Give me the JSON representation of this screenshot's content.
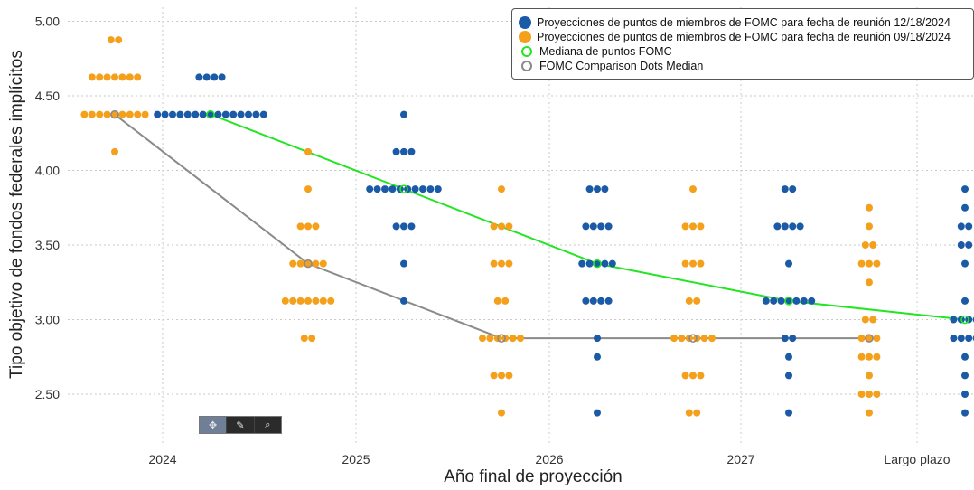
{
  "chart_data": {
    "type": "scatter",
    "xlabel": "Año final de proyección",
    "ylabel": "Tipo objetivo de fondos federales implícitos",
    "categories": [
      "2024",
      "2025",
      "2026",
      "2027",
      "Largo plazo"
    ],
    "ylim": [
      2.25,
      5.0
    ],
    "yticks": [
      "2.50",
      "3.00",
      "3.50",
      "4.00",
      "4.50",
      "5.00"
    ],
    "grid": true,
    "legend_position": "top-right",
    "series": [
      {
        "name": "Proyecciones de puntos de miembros de FOMC para fecha de reunión 12/18/2024",
        "color": "#1a5aa6",
        "kind": "dots",
        "points": [
          {
            "x": "2024",
            "y": 4.625,
            "count": 4
          },
          {
            "x": "2024",
            "y": 4.375,
            "count": 15
          },
          {
            "x": "2025",
            "y": 4.375,
            "count": 1
          },
          {
            "x": "2025",
            "y": 4.125,
            "count": 3
          },
          {
            "x": "2025",
            "y": 3.875,
            "count": 10
          },
          {
            "x": "2025",
            "y": 3.625,
            "count": 3
          },
          {
            "x": "2025",
            "y": 3.375,
            "count": 1
          },
          {
            "x": "2025",
            "y": 3.125,
            "count": 1
          },
          {
            "x": "2026",
            "y": 3.875,
            "count": 3
          },
          {
            "x": "2026",
            "y": 3.625,
            "count": 4
          },
          {
            "x": "2026",
            "y": 3.375,
            "count": 5
          },
          {
            "x": "2026",
            "y": 3.125,
            "count": 4
          },
          {
            "x": "2026",
            "y": 2.875,
            "count": 1
          },
          {
            "x": "2026",
            "y": 2.75,
            "count": 1
          },
          {
            "x": "2026",
            "y": 2.375,
            "count": 1
          },
          {
            "x": "2027",
            "y": 3.875,
            "count": 2
          },
          {
            "x": "2027",
            "y": 3.625,
            "count": 4
          },
          {
            "x": "2027",
            "y": 3.375,
            "count": 1
          },
          {
            "x": "2027",
            "y": 3.125,
            "count": 7
          },
          {
            "x": "2027",
            "y": 2.875,
            "count": 2
          },
          {
            "x": "2027",
            "y": 2.75,
            "count": 1
          },
          {
            "x": "2027",
            "y": 2.625,
            "count": 1
          },
          {
            "x": "2027",
            "y": 2.375,
            "count": 1
          },
          {
            "x": "Largo plazo",
            "y": 3.875,
            "count": 1
          },
          {
            "x": "Largo plazo",
            "y": 3.75,
            "count": 1
          },
          {
            "x": "Largo plazo",
            "y": 3.625,
            "count": 2
          },
          {
            "x": "Largo plazo",
            "y": 3.5,
            "count": 2
          },
          {
            "x": "Largo plazo",
            "y": 3.375,
            "count": 1
          },
          {
            "x": "Largo plazo",
            "y": 3.125,
            "count": 1
          },
          {
            "x": "Largo plazo",
            "y": 3.0,
            "count": 4
          },
          {
            "x": "Largo plazo",
            "y": 2.875,
            "count": 4
          },
          {
            "x": "Largo plazo",
            "y": 2.75,
            "count": 1
          },
          {
            "x": "Largo plazo",
            "y": 2.625,
            "count": 1
          },
          {
            "x": "Largo plazo",
            "y": 2.5,
            "count": 1
          },
          {
            "x": "Largo plazo",
            "y": 2.375,
            "count": 1
          }
        ]
      },
      {
        "name": "Proyecciones de puntos de miembros de FOMC para fecha de reunión 09/18/2024",
        "color": "#f5a01a",
        "kind": "dots",
        "points": [
          {
            "x": "2024",
            "y": 4.875,
            "count": 2
          },
          {
            "x": "2024",
            "y": 4.625,
            "count": 7
          },
          {
            "x": "2024",
            "y": 4.375,
            "count": 9
          },
          {
            "x": "2024",
            "y": 4.125,
            "count": 1
          },
          {
            "x": "2025",
            "y": 4.125,
            "count": 1
          },
          {
            "x": "2025",
            "y": 3.875,
            "count": 1
          },
          {
            "x": "2025",
            "y": 3.625,
            "count": 3
          },
          {
            "x": "2025",
            "y": 3.375,
            "count": 5
          },
          {
            "x": "2025",
            "y": 3.125,
            "count": 7
          },
          {
            "x": "2025",
            "y": 2.875,
            "count": 2
          },
          {
            "x": "2026",
            "y": 3.875,
            "count": 1
          },
          {
            "x": "2026",
            "y": 3.625,
            "count": 3
          },
          {
            "x": "2026",
            "y": 3.375,
            "count": 3
          },
          {
            "x": "2026",
            "y": 3.125,
            "count": 2
          },
          {
            "x": "2026",
            "y": 2.875,
            "count": 6
          },
          {
            "x": "2026",
            "y": 2.625,
            "count": 3
          },
          {
            "x": "2026",
            "y": 2.375,
            "count": 1
          },
          {
            "x": "2027",
            "y": 3.875,
            "count": 1
          },
          {
            "x": "2027",
            "y": 3.625,
            "count": 3
          },
          {
            "x": "2027",
            "y": 3.375,
            "count": 3
          },
          {
            "x": "2027",
            "y": 3.125,
            "count": 2
          },
          {
            "x": "2027",
            "y": 2.875,
            "count": 6
          },
          {
            "x": "2027",
            "y": 2.625,
            "count": 3
          },
          {
            "x": "2027",
            "y": 2.375,
            "count": 2
          },
          {
            "x": "Largo plazo",
            "y": 3.75,
            "count": 1
          },
          {
            "x": "Largo plazo",
            "y": 3.625,
            "count": 1
          },
          {
            "x": "Largo plazo",
            "y": 3.5,
            "count": 2
          },
          {
            "x": "Largo plazo",
            "y": 3.375,
            "count": 3
          },
          {
            "x": "Largo plazo",
            "y": 3.25,
            "count": 1
          },
          {
            "x": "Largo plazo",
            "y": 3.0,
            "count": 2
          },
          {
            "x": "Largo plazo",
            "y": 2.875,
            "count": 3
          },
          {
            "x": "Largo plazo",
            "y": 2.75,
            "count": 3
          },
          {
            "x": "Largo plazo",
            "y": 2.625,
            "count": 1
          },
          {
            "x": "Largo plazo",
            "y": 2.5,
            "count": 3
          },
          {
            "x": "Largo plazo",
            "y": 2.375,
            "count": 1
          }
        ]
      },
      {
        "name": "Mediana de puntos FOMC",
        "color": "#22e622",
        "kind": "median",
        "values": [
          {
            "x": "2024",
            "y": 4.375
          },
          {
            "x": "2025",
            "y": 3.875
          },
          {
            "x": "2026",
            "y": 3.375
          },
          {
            "x": "2027",
            "y": 3.125
          },
          {
            "x": "Largo plazo",
            "y": 3.0
          }
        ]
      },
      {
        "name": "FOMC Comparison Dots Median",
        "color": "#8a8a8a",
        "kind": "median",
        "values": [
          {
            "x": "2024",
            "y": 4.375
          },
          {
            "x": "2025",
            "y": 3.375
          },
          {
            "x": "2026",
            "y": 2.875
          },
          {
            "x": "2027",
            "y": 2.875
          },
          {
            "x": "Largo plazo",
            "y": 2.875
          }
        ]
      }
    ]
  },
  "toolbar": {
    "items": [
      {
        "name": "pan-tool",
        "glyph": "✥"
      },
      {
        "name": "draw-tool",
        "glyph": "✎"
      },
      {
        "name": "zoom-tool",
        "glyph": "⌕"
      }
    ]
  }
}
